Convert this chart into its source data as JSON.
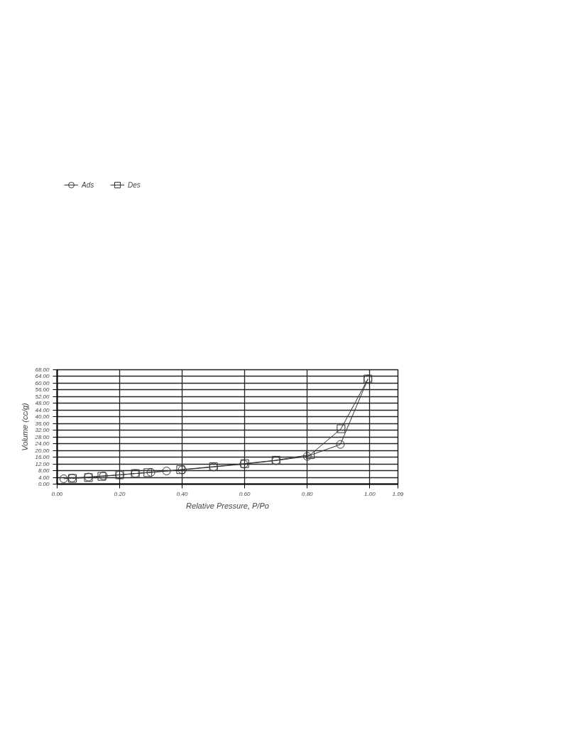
{
  "chart_data": {
    "type": "line",
    "xlabel": "Relative Pressure, P/Po",
    "ylabel": "Volume (cc/g)",
    "xlim": [
      0,
      1.09
    ],
    "ylim": [
      0,
      68
    ],
    "xticks": [
      {
        "value": 0,
        "label": "0.00"
      },
      {
        "value": 0.2,
        "label": "0.20"
      },
      {
        "value": 0.4,
        "label": "0.40"
      },
      {
        "value": 0.6,
        "label": "0.60"
      },
      {
        "value": 0.8,
        "label": "0.80"
      },
      {
        "value": 1.0,
        "label": "1.00"
      },
      {
        "value": 1.09,
        "label": "1.09"
      }
    ],
    "yticks": [
      {
        "value": 0,
        "label": "0.00"
      },
      {
        "value": 4,
        "label": "4.00"
      },
      {
        "value": 8,
        "label": "8.00"
      },
      {
        "value": 12,
        "label": "12.00"
      },
      {
        "value": 16,
        "label": "16.00"
      },
      {
        "value": 20,
        "label": "20.00"
      },
      {
        "value": 24,
        "label": "24.00"
      },
      {
        "value": 28,
        "label": "28.00"
      },
      {
        "value": 32,
        "label": "32.00"
      },
      {
        "value": 36,
        "label": "36.00"
      },
      {
        "value": 40,
        "label": "40.00"
      },
      {
        "value": 44,
        "label": "44.00"
      },
      {
        "value": 48,
        "label": "48.00"
      },
      {
        "value": 52,
        "label": "52.00"
      },
      {
        "value": 56,
        "label": "56.00"
      },
      {
        "value": 60,
        "label": "60.00"
      },
      {
        "value": 64,
        "label": "64.00"
      },
      {
        "value": 68,
        "label": "68.00"
      }
    ],
    "grid": true,
    "legend": "top left",
    "line_style": "solid",
    "series": [
      {
        "name": "Ads",
        "color": "#333333",
        "marker": "circle",
        "x": [
          0.021,
          0.048,
          0.1,
          0.148,
          0.2,
          0.25,
          0.3,
          0.35,
          0.4,
          0.5,
          0.597,
          0.7,
          0.8,
          0.906,
          0.994
        ],
        "values": [
          3.2,
          3.6,
          4.2,
          4.9,
          5.5,
          6.3,
          7.0,
          7.8,
          8.5,
          10.2,
          11.9,
          14.0,
          16.5,
          23.6,
          62.5
        ]
      },
      {
        "name": "Des",
        "color": "#333333",
        "marker": "square",
        "x": [
          0.049,
          0.1,
          0.143,
          0.2,
          0.25,
          0.29,
          0.395,
          0.5,
          0.6,
          0.7,
          0.81,
          0.908,
          0.994
        ],
        "values": [
          3.4,
          3.9,
          4.6,
          5.5,
          6.3,
          6.8,
          8.6,
          10.4,
          12.2,
          14.2,
          17.5,
          32.9,
          62.5
        ]
      }
    ]
  }
}
